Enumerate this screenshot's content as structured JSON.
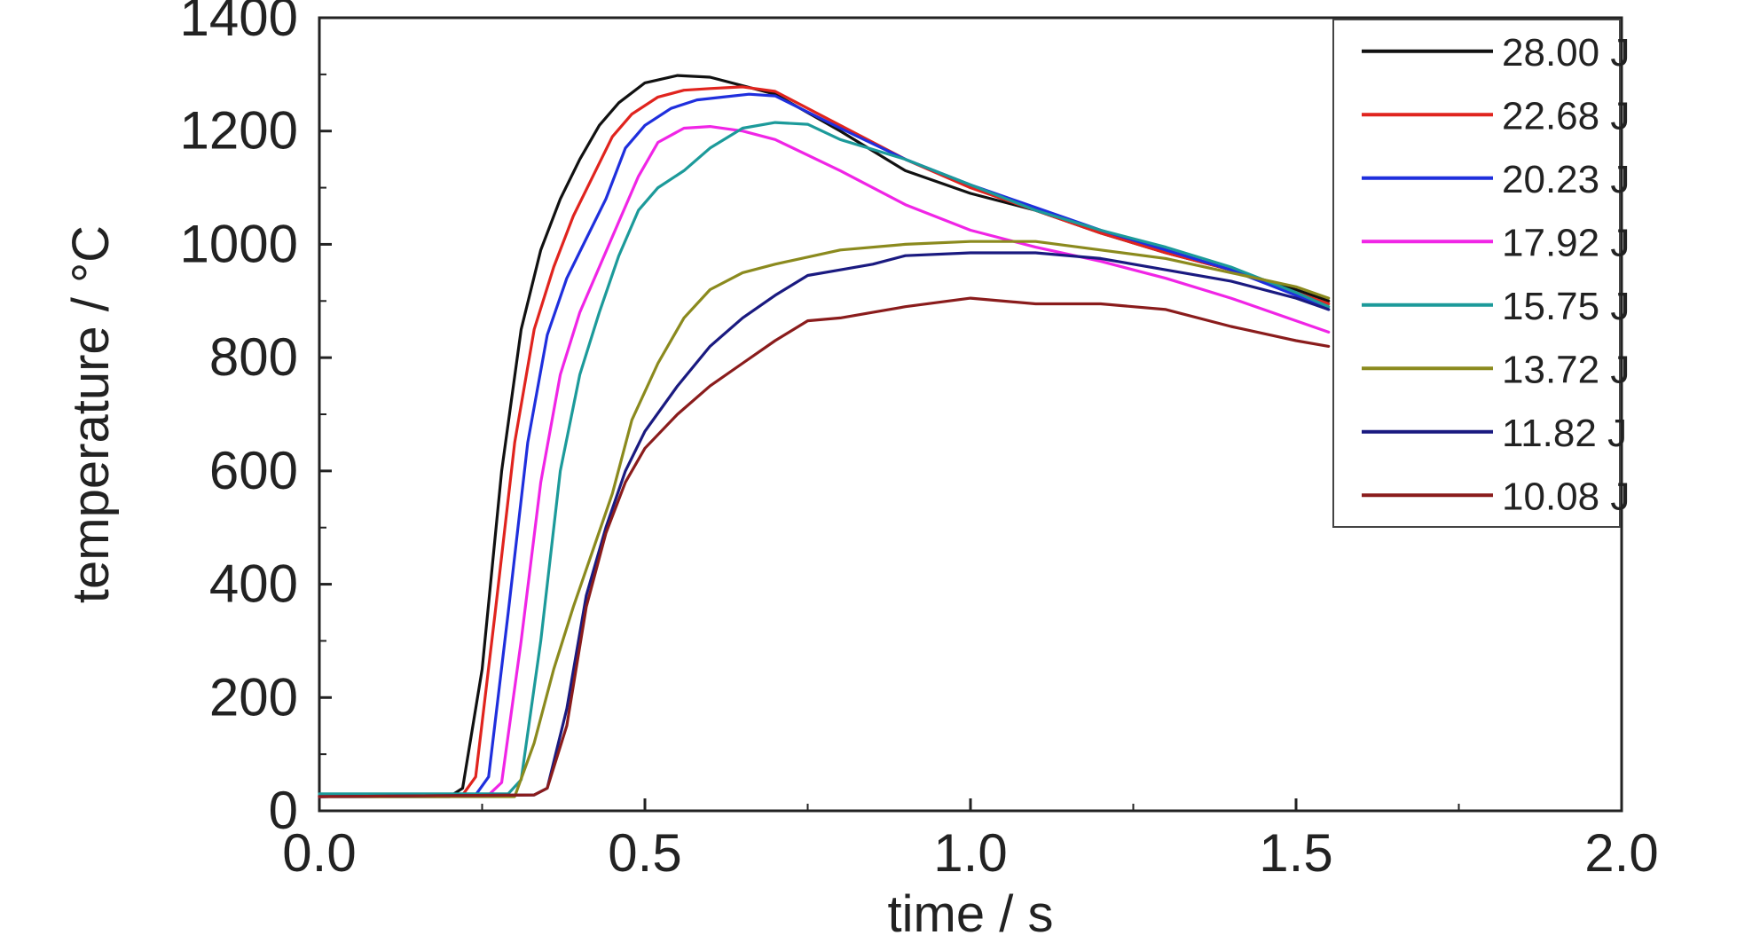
{
  "chart_data": {
    "type": "line",
    "xlabel": "time / s",
    "ylabel": "temperature / °C",
    "xlim": [
      0.0,
      2.0
    ],
    "ylim": [
      0,
      1400
    ],
    "xticks": [
      "0.0",
      "0.5",
      "1.0",
      "1.5",
      "2.0"
    ],
    "yticks": [
      "0",
      "200",
      "400",
      "600",
      "800",
      "1000",
      "1200",
      "1400"
    ],
    "grid": false,
    "legend_position": "top-right",
    "series": [
      {
        "name": "28.00 J",
        "color": "#111111",
        "x": [
          0.0,
          0.2,
          0.22,
          0.25,
          0.28,
          0.31,
          0.34,
          0.37,
          0.4,
          0.43,
          0.46,
          0.5,
          0.55,
          0.6,
          0.7,
          0.8,
          0.9,
          1.0,
          1.1,
          1.2,
          1.3,
          1.4,
          1.5,
          1.55
        ],
        "y": [
          25,
          25,
          40,
          250,
          600,
          850,
          990,
          1080,
          1150,
          1210,
          1250,
          1285,
          1298,
          1295,
          1265,
          1200,
          1130,
          1090,
          1060,
          1020,
          985,
          955,
          920,
          900
        ]
      },
      {
        "name": "22.68 J",
        "color": "#e0241e",
        "x": [
          0.0,
          0.22,
          0.24,
          0.27,
          0.3,
          0.33,
          0.36,
          0.39,
          0.42,
          0.45,
          0.48,
          0.52,
          0.56,
          0.6,
          0.65,
          0.7,
          0.8,
          0.9,
          1.0,
          1.1,
          1.2,
          1.3,
          1.4,
          1.5,
          1.55
        ],
        "y": [
          25,
          28,
          60,
          350,
          650,
          850,
          960,
          1050,
          1120,
          1190,
          1230,
          1260,
          1272,
          1275,
          1278,
          1270,
          1210,
          1150,
          1100,
          1060,
          1020,
          985,
          955,
          915,
          895
        ]
      },
      {
        "name": "20.23 J",
        "color": "#1f2fdd",
        "x": [
          0.0,
          0.24,
          0.26,
          0.29,
          0.32,
          0.35,
          0.38,
          0.41,
          0.44,
          0.47,
          0.5,
          0.54,
          0.58,
          0.62,
          0.66,
          0.7,
          0.8,
          0.9,
          1.0,
          1.1,
          1.2,
          1.3,
          1.4,
          1.5,
          1.55
        ],
        "y": [
          25,
          28,
          60,
          350,
          650,
          840,
          940,
          1010,
          1080,
          1170,
          1210,
          1240,
          1255,
          1260,
          1265,
          1262,
          1205,
          1150,
          1105,
          1065,
          1025,
          990,
          955,
          910,
          885
        ]
      },
      {
        "name": "17.92 J",
        "color": "#f025e6",
        "x": [
          0.0,
          0.26,
          0.28,
          0.31,
          0.34,
          0.37,
          0.4,
          0.43,
          0.46,
          0.49,
          0.52,
          0.56,
          0.6,
          0.65,
          0.7,
          0.8,
          0.9,
          1.0,
          1.1,
          1.2,
          1.3,
          1.4,
          1.5,
          1.55
        ],
        "y": [
          25,
          28,
          50,
          300,
          580,
          770,
          880,
          960,
          1040,
          1120,
          1180,
          1205,
          1208,
          1200,
          1185,
          1130,
          1070,
          1025,
          995,
          970,
          940,
          905,
          865,
          845
        ]
      },
      {
        "name": "15.75 J",
        "color": "#1c9a9a",
        "x": [
          0.0,
          0.29,
          0.31,
          0.34,
          0.37,
          0.4,
          0.43,
          0.46,
          0.49,
          0.52,
          0.56,
          0.6,
          0.65,
          0.7,
          0.75,
          0.8,
          0.9,
          1.0,
          1.1,
          1.2,
          1.3,
          1.4,
          1.5,
          1.55
        ],
        "y": [
          30,
          30,
          55,
          300,
          600,
          770,
          880,
          980,
          1060,
          1100,
          1130,
          1170,
          1205,
          1215,
          1212,
          1185,
          1150,
          1105,
          1060,
          1025,
          995,
          960,
          915,
          890
        ]
      },
      {
        "name": "13.72 J",
        "color": "#8b8a1e",
        "x": [
          0.0,
          0.3,
          0.33,
          0.36,
          0.39,
          0.42,
          0.45,
          0.48,
          0.52,
          0.56,
          0.6,
          0.65,
          0.7,
          0.8,
          0.9,
          1.0,
          1.1,
          1.2,
          1.3,
          1.4,
          1.5,
          1.55
        ],
        "y": [
          25,
          25,
          120,
          250,
          360,
          460,
          560,
          690,
          790,
          870,
          920,
          950,
          965,
          990,
          1000,
          1005,
          1005,
          990,
          975,
          950,
          925,
          905
        ]
      },
      {
        "name": "11.82 J",
        "color": "#1a1a80",
        "x": [
          0.0,
          0.33,
          0.35,
          0.38,
          0.41,
          0.44,
          0.47,
          0.5,
          0.55,
          0.6,
          0.65,
          0.7,
          0.75,
          0.8,
          0.85,
          0.9,
          1.0,
          1.1,
          1.2,
          1.3,
          1.4,
          1.5,
          1.55
        ],
        "y": [
          25,
          28,
          40,
          180,
          380,
          500,
          600,
          670,
          750,
          820,
          870,
          910,
          945,
          955,
          965,
          980,
          985,
          985,
          975,
          955,
          935,
          905,
          885
        ]
      },
      {
        "name": "10.08 J",
        "color": "#8a1c1c",
        "x": [
          0.0,
          0.33,
          0.35,
          0.38,
          0.41,
          0.44,
          0.47,
          0.5,
          0.55,
          0.6,
          0.65,
          0.7,
          0.75,
          0.8,
          0.85,
          0.9,
          1.0,
          1.1,
          1.2,
          1.3,
          1.4,
          1.5,
          1.55
        ],
        "y": [
          25,
          28,
          40,
          150,
          360,
          490,
          580,
          640,
          700,
          750,
          790,
          830,
          865,
          870,
          880,
          890,
          905,
          895,
          895,
          885,
          855,
          830,
          820
        ]
      }
    ]
  }
}
